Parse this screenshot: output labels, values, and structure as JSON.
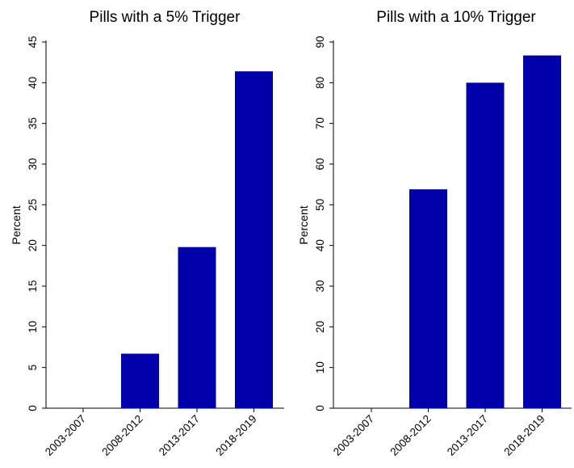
{
  "colors": {
    "bar": "#0000AA",
    "axis": "#000000",
    "background": "#FFFFFF"
  },
  "chart_data": [
    {
      "type": "bar",
      "title": "Pills with a 5% Trigger",
      "ylabel": "Percent",
      "xlabel": "",
      "categories": [
        "2003-2007",
        "2008-2012",
        "2013-2017",
        "2018-2019"
      ],
      "values": [
        0,
        6.7,
        19.8,
        41.4
      ],
      "ylim": [
        0,
        45
      ],
      "yticks": [
        "0",
        "5",
        "10",
        "15",
        "20",
        "25",
        "30",
        "35",
        "40",
        "45"
      ],
      "grid": false,
      "legend": "none"
    },
    {
      "type": "bar",
      "title": "Pills with a 10% Trigger",
      "ylabel": "Percent",
      "xlabel": "",
      "categories": [
        "2003-2007",
        "2008-2012",
        "2013-2017",
        "2018-2019"
      ],
      "values": [
        0,
        53.8,
        80.0,
        86.7
      ],
      "ylim": [
        0,
        90
      ],
      "yticks": [
        "0",
        "10",
        "20",
        "30",
        "40",
        "50",
        "60",
        "70",
        "80",
        "90"
      ],
      "grid": false,
      "legend": "none"
    }
  ]
}
